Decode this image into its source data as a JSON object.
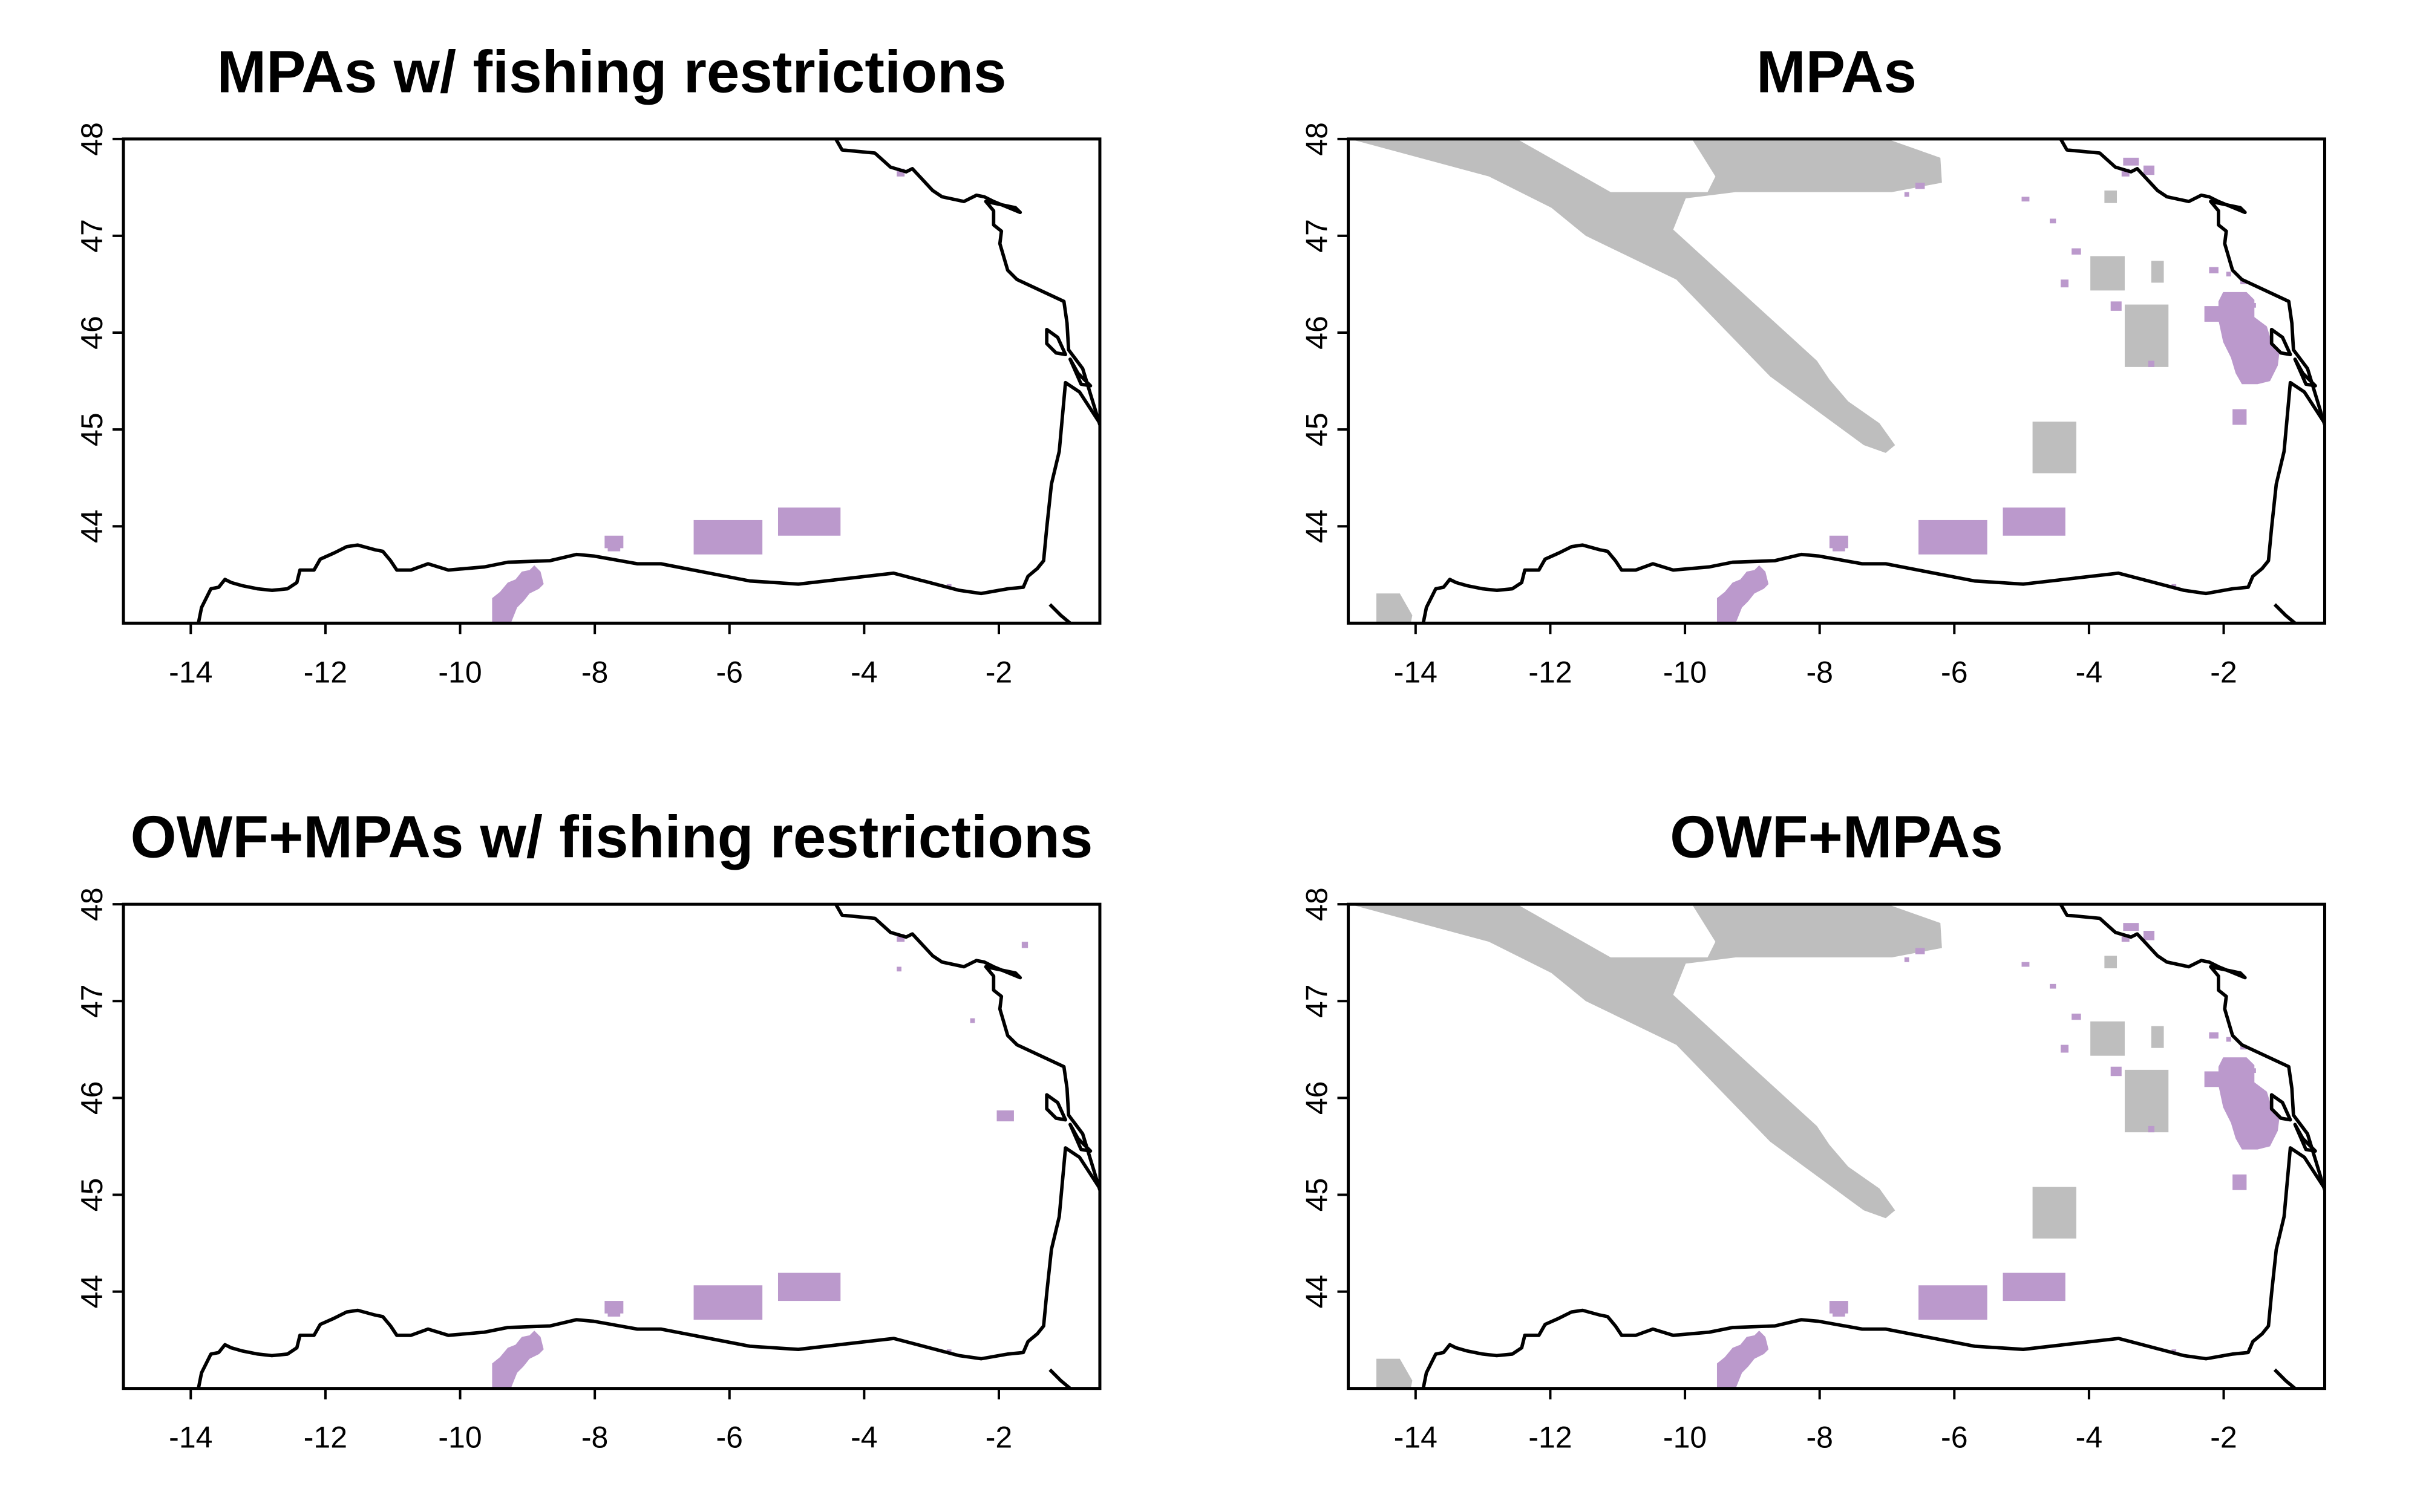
{
  "figure": {
    "x_ticks": [
      -14,
      -12,
      -10,
      -8,
      -6,
      -4,
      -2
    ],
    "x_tick_labels": [
      "-14",
      "-12",
      "-10",
      "-8",
      "-6",
      "-4",
      "-2"
    ],
    "y_ticks": [
      44,
      45,
      46,
      47,
      48
    ],
    "y_tick_labels": [
      "44",
      "45",
      "46",
      "47",
      "48"
    ],
    "xlim": [
      -15,
      -0.5
    ],
    "ylim": [
      43,
      48
    ],
    "colors": {
      "mpa": "#bb99cc",
      "owf_zone": "#bebebe",
      "coastline": "#000000",
      "frame": "#000000",
      "background": "#ffffff"
    },
    "panels": [
      {
        "id": "p1",
        "title": "MPAs w/ fishing restrictions",
        "show_grey_zones": false,
        "show_all_mpas": false,
        "extra_owf_mpas": false
      },
      {
        "id": "p2",
        "title": "MPAs",
        "show_grey_zones": true,
        "show_all_mpas": true,
        "extra_owf_mpas": false
      },
      {
        "id": "p3",
        "title": "OWF+MPAs w/ fishing restrictions",
        "show_grey_zones": false,
        "show_all_mpas": false,
        "extra_owf_mpas": true
      },
      {
        "id": "p4",
        "title": "OWF+MPAs",
        "show_grey_zones": true,
        "show_all_mpas": true,
        "extra_owf_mpas": false
      }
    ]
  }
}
